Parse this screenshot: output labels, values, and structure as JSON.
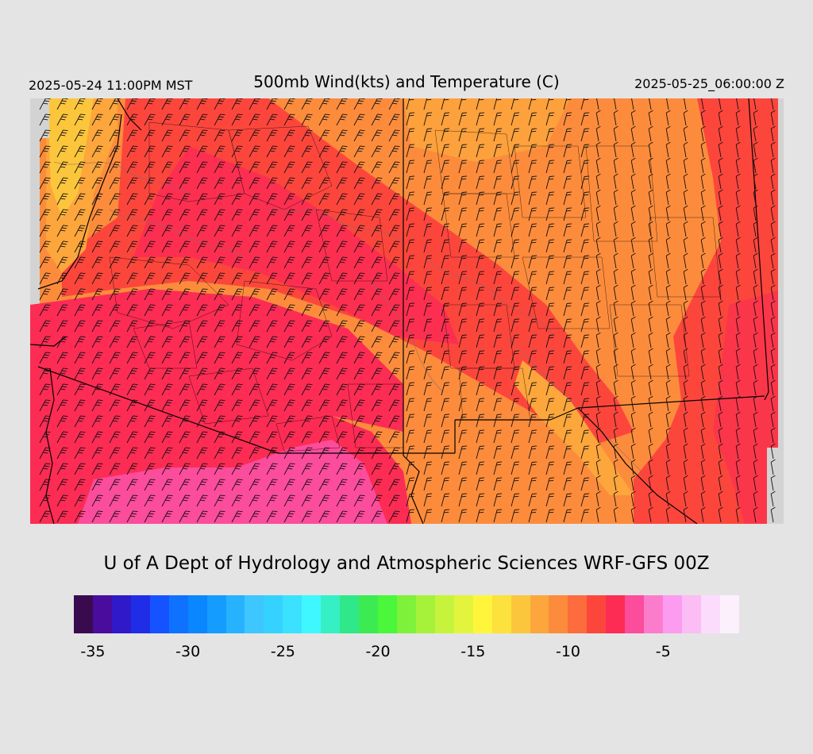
{
  "header": {
    "local_time": "2025-05-24 11:00PM MST",
    "title": "500mb Wind(kts) and Temperature (C)",
    "valid_time": "2025-05-25_06:00:00 Z"
  },
  "credit": "U of A Dept of Hydrology and Atmospheric Sciences WRF-GFS 00Z",
  "colorbar": {
    "min": -36,
    "max": -1,
    "colors": [
      "#3a0a4f",
      "#4a0c9c",
      "#3019c8",
      "#1f2ee6",
      "#1453ff",
      "#0f72ff",
      "#0a86ff",
      "#149cff",
      "#27b2ff",
      "#3ec6ff",
      "#35d2ff",
      "#3ae2ff",
      "#3ff8ff",
      "#35f0c4",
      "#2fe88a",
      "#3ceb52",
      "#4af73a",
      "#7ef23a",
      "#a6f23a",
      "#c6f43c",
      "#e3f43c",
      "#fff63c",
      "#fde13c",
      "#fcc63c",
      "#fca63c",
      "#fc8c3c",
      "#fc6c3c",
      "#fc463c",
      "#fc2c54",
      "#fc4c9c",
      "#fc7ccc",
      "#fc9cf0",
      "#fcbcf4",
      "#fcdcfc",
      "#fcf0fc"
    ],
    "tick_labels": [
      "-35",
      "-30",
      "-25",
      "-20",
      "-15",
      "-10",
      "-5"
    ],
    "tick_values": [
      -35,
      -30,
      -25,
      -20,
      -15,
      -10,
      -5
    ]
  },
  "map": {
    "colors": {
      "no_data": "#d3d3d3",
      "temp_minus_13": "#fcc63c",
      "temp_minus_11": "#fca63c",
      "temp_minus_10": "#fc8c3c",
      "temp_minus_9": "#fc6c3c",
      "temp_minus_8": "#fc463c",
      "temp_minus_7": "#fc2c54",
      "temp_minus_6": "#fc4c9c",
      "boundary": "#000000",
      "barb": "#111111",
      "contour": "#8a6a6a"
    },
    "features": [
      "state-boundaries",
      "county-boundaries",
      "coastline",
      "wind-barbs",
      "temperature-contours"
    ]
  }
}
